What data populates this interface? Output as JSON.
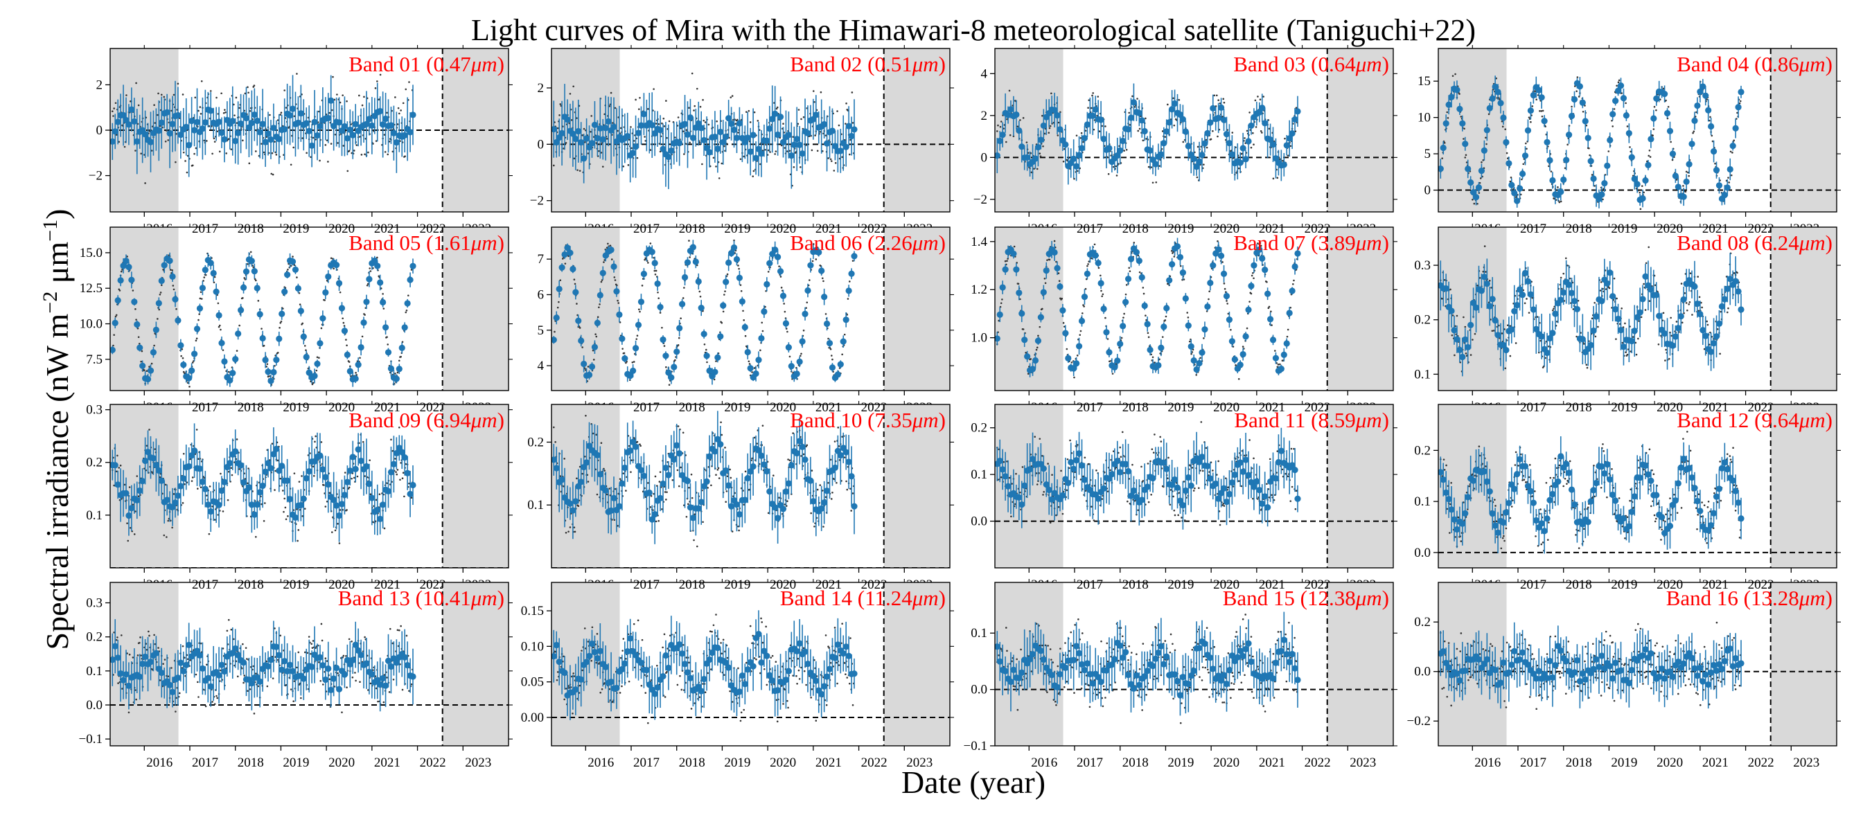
{
  "chart_data": {
    "type": "scatter",
    "title": "Light curves of Mira with the Himawari-8 meteorological satellite (Taniguchi+22)",
    "xlabel": "Date  (year)",
    "ylabel": "Spectral irradiance  (nW m−2 μm−1)",
    "xlim": [
      2015.25,
      2024.0
    ],
    "x_ticks": [
      "2016",
      "2017",
      "2018",
      "2019",
      "2020",
      "2021",
      "2022",
      "2023"
    ],
    "shaded_x_ranges": [
      [
        2015.25,
        2016.75
      ],
      [
        2022.55,
        2024.0
      ]
    ],
    "vertical_line_x": 2022.55,
    "reference_line_y": 0,
    "grid": false,
    "colors": {
      "points": "#1f77b4",
      "raw": "#333333",
      "shade": "#d9d9d9",
      "band_label": "#ff0000"
    },
    "panels": [
      {
        "label": "Band 01",
        "wavelength": "0.47",
        "ylim": [
          -3.6,
          3.6
        ],
        "yticks": [
          -2,
          0,
          2
        ],
        "tick_labels": [
          "−2",
          "0",
          "2"
        ],
        "mean": 0.2,
        "amplitude": 0.4,
        "phase": 0,
        "noise": 1.3
      },
      {
        "label": "Band 02",
        "wavelength": "0.51",
        "ylim": [
          -2.4,
          3.4
        ],
        "yticks": [
          -2,
          0,
          2
        ],
        "tick_labels": [
          "−2",
          "0",
          "2"
        ],
        "mean": 0.3,
        "amplitude": 0.4,
        "phase": 0,
        "noise": 1.0
      },
      {
        "label": "Band 03",
        "wavelength": "0.64",
        "ylim": [
          -2.6,
          5.2
        ],
        "yticks": [
          -2,
          0,
          2,
          4
        ],
        "tick_labels": [
          "−2",
          "0",
          "2",
          "4"
        ],
        "mean": 1.0,
        "amplitude": 1.3,
        "phase": 0,
        "noise": 0.8
      },
      {
        "label": "Band 04",
        "wavelength": "0.86",
        "ylim": [
          -3.0,
          19.5
        ],
        "yticks": [
          0,
          5,
          10,
          15
        ],
        "tick_labels": [
          "0",
          "5",
          "10",
          "15"
        ],
        "mean": 6.5,
        "amplitude": 7.5,
        "phase": 0,
        "noise": 1.3
      },
      {
        "label": "Band 05",
        "wavelength": "1.61",
        "ylim": [
          5.3,
          16.8
        ],
        "yticks": [
          7.5,
          10.0,
          12.5,
          15.0
        ],
        "tick_labels": [
          "7.5",
          "10.0",
          "12.5",
          "15.0"
        ],
        "mean": 10.3,
        "amplitude": 4.2,
        "phase": 0,
        "noise": 0.5
      },
      {
        "label": "Band 06",
        "wavelength": "2.26",
        "ylim": [
          3.3,
          7.9
        ],
        "yticks": [
          4,
          5,
          6,
          7
        ],
        "tick_labels": [
          "4",
          "5",
          "6",
          "7"
        ],
        "mean": 5.5,
        "amplitude": 1.8,
        "phase": 0,
        "noise": 0.2
      },
      {
        "label": "Band 07",
        "wavelength": "3.89",
        "ylim": [
          0.78,
          1.46
        ],
        "yticks": [
          1.0,
          1.2,
          1.4
        ],
        "tick_labels": [
          "1.0",
          "1.2",
          "1.4"
        ],
        "mean": 1.12,
        "amplitude": 0.25,
        "phase": 0,
        "noise": 0.03
      },
      {
        "label": "Band 08",
        "wavelength": "6.24",
        "ylim": [
          0.07,
          0.37
        ],
        "yticks": [
          0.1,
          0.2,
          0.3
        ],
        "tick_labels": [
          "0.1",
          "0.2",
          "0.3"
        ],
        "mean": 0.21,
        "amplitude": 0.06,
        "phase": 0.3,
        "noise": 0.04
      },
      {
        "label": "Band 09",
        "wavelength": "6.94",
        "ylim": [
          0.0,
          0.31
        ],
        "yticks": [
          0.1,
          0.2,
          0.3
        ],
        "tick_labels": [
          "0.1",
          "0.2",
          "0.3"
        ],
        "mean": 0.16,
        "amplitude": 0.05,
        "phase": 0.4,
        "noise": 0.045
      },
      {
        "label": "Band 10",
        "wavelength": "7.35",
        "ylim": [
          0.0,
          0.26
        ],
        "yticks": [
          0.1,
          0.2
        ],
        "tick_labels": [
          "0.1",
          "0.2"
        ],
        "mean": 0.14,
        "amplitude": 0.05,
        "phase": 0.4,
        "noise": 0.04
      },
      {
        "label": "Band 11",
        "wavelength": "8.59",
        "ylim": [
          -0.1,
          0.25
        ],
        "yticks": [
          0.0,
          0.1,
          0.2
        ],
        "tick_labels": [
          "0.0",
          "0.1",
          "0.2"
        ],
        "mean": 0.09,
        "amplitude": 0.04,
        "phase": 0.4,
        "noise": 0.05
      },
      {
        "label": "Band 12",
        "wavelength": "9.64",
        "ylim": [
          -0.03,
          0.29
        ],
        "yticks": [
          0.0,
          0.1,
          0.2
        ],
        "tick_labels": [
          "0.0",
          "0.1",
          "0.2"
        ],
        "mean": 0.11,
        "amplitude": 0.06,
        "phase": 0.4,
        "noise": 0.04
      },
      {
        "label": "Band 13",
        "wavelength": "10.41",
        "ylim": [
          -0.12,
          0.36
        ],
        "yticks": [
          -0.1,
          0.0,
          0.1,
          0.2,
          0.3
        ],
        "tick_labels": [
          "−0.1",
          "0.0",
          "0.1",
          "0.2",
          "0.3"
        ],
        "mean": 0.11,
        "amplitude": 0.04,
        "phase": 0.4,
        "noise": 0.07
      },
      {
        "label": "Band 14",
        "wavelength": "11.24",
        "ylim": [
          -0.04,
          0.19
        ],
        "yticks": [
          0.0,
          0.05,
          0.1,
          0.15
        ],
        "tick_labels": [
          "0.00",
          "0.05",
          "0.10",
          "0.15"
        ],
        "mean": 0.07,
        "amplitude": 0.03,
        "phase": 0.4,
        "noise": 0.035
      },
      {
        "label": "Band 15",
        "wavelength": "12.38",
        "ylim": [
          -0.1,
          0.19
        ],
        "yticks": [
          -0.1,
          0.0,
          0.1
        ],
        "tick_labels": [
          "−0.1",
          "0.0",
          "0.1"
        ],
        "mean": 0.04,
        "amplitude": 0.03,
        "phase": 0.4,
        "noise": 0.045
      },
      {
        "label": "Band 16",
        "wavelength": "13.28",
        "ylim": [
          -0.3,
          0.36
        ],
        "yticks": [
          -0.2,
          0.0,
          0.2
        ],
        "tick_labels": [
          "−0.2",
          "0.0",
          "0.2"
        ],
        "mean": 0.02,
        "amplitude": 0.04,
        "phase": 0.4,
        "noise": 0.1
      }
    ]
  }
}
